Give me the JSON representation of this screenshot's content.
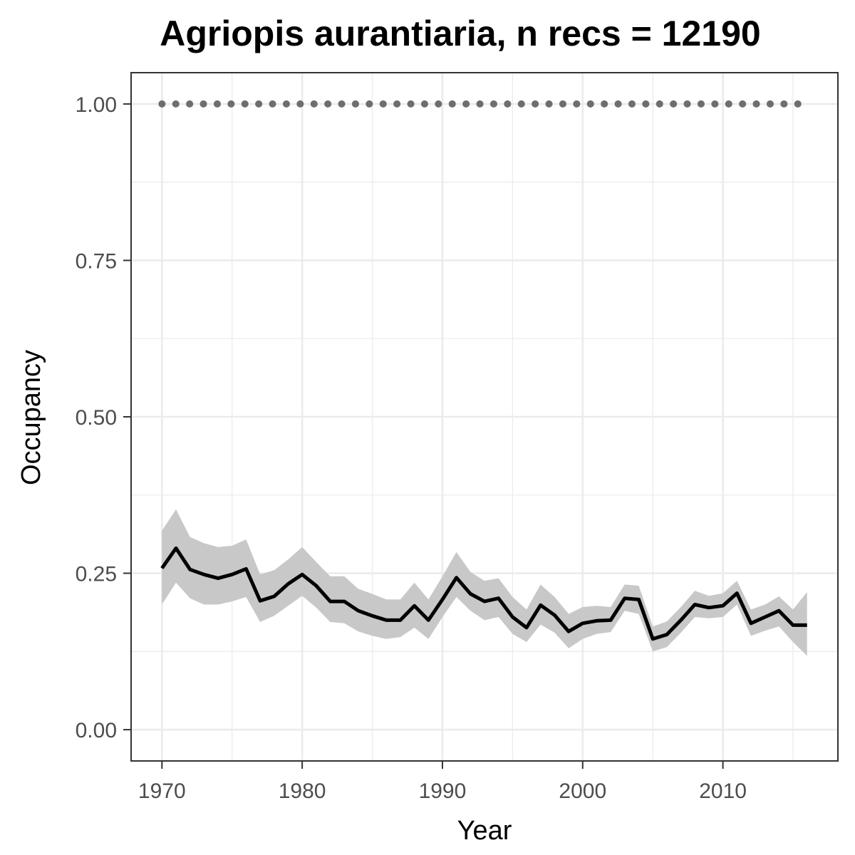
{
  "chart_data": {
    "type": "line",
    "title": "Agriopis aurantiaria, n recs = 12190",
    "xlabel": "Year",
    "ylabel": "Occupancy",
    "xlim": [
      1967.8,
      2018.2
    ],
    "ylim": [
      -0.05,
      1.05
    ],
    "x_ticks": [
      1970,
      1980,
      1990,
      2000,
      2010
    ],
    "x_tick_labels": [
      "1970",
      "1980",
      "1990",
      "2000",
      "2010"
    ],
    "y_ticks": [
      0,
      0.25,
      0.5,
      0.75,
      1.0
    ],
    "y_tick_labels": [
      "0.00",
      "0.25",
      "0.50",
      "0.75",
      "1.00"
    ],
    "grid": true,
    "series": [
      {
        "style": "solid line with confidence band",
        "color": "#000000",
        "band_color": "#c8c8c8",
        "x": [
          1970,
          1971,
          1972,
          1973,
          1974,
          1975,
          1976,
          1977,
          1978,
          1979,
          1980,
          1981,
          1982,
          1983,
          1984,
          1985,
          1986,
          1987,
          1988,
          1989,
          1990,
          1991,
          1992,
          1993,
          1994,
          1995,
          1996,
          1997,
          1998,
          1999,
          2000,
          2001,
          2002,
          2003,
          2004,
          2005,
          2006,
          2007,
          2008,
          2009,
          2010,
          2011,
          2012,
          2013,
          2014,
          2015,
          2016
        ],
        "y": [
          0.258,
          0.29,
          0.256,
          0.248,
          0.242,
          0.248,
          0.257,
          0.206,
          0.213,
          0.233,
          0.248,
          0.23,
          0.205,
          0.205,
          0.19,
          0.182,
          0.175,
          0.175,
          0.198,
          0.175,
          0.208,
          0.243,
          0.217,
          0.205,
          0.21,
          0.18,
          0.163,
          0.199,
          0.183,
          0.157,
          0.17,
          0.174,
          0.175,
          0.21,
          0.208,
          0.145,
          0.152,
          0.175,
          0.2,
          0.195,
          0.198,
          0.218,
          0.17,
          0.18,
          0.19,
          0.167,
          0.167
        ],
        "lower": [
          0.2,
          0.235,
          0.21,
          0.2,
          0.2,
          0.205,
          0.212,
          0.172,
          0.182,
          0.198,
          0.214,
          0.195,
          0.172,
          0.17,
          0.157,
          0.15,
          0.145,
          0.148,
          0.163,
          0.145,
          0.18,
          0.212,
          0.19,
          0.175,
          0.18,
          0.153,
          0.14,
          0.168,
          0.155,
          0.13,
          0.145,
          0.153,
          0.156,
          0.19,
          0.185,
          0.125,
          0.132,
          0.155,
          0.18,
          0.178,
          0.18,
          0.2,
          0.15,
          0.158,
          0.165,
          0.14,
          0.118
        ],
        "upper": [
          0.318,
          0.352,
          0.308,
          0.298,
          0.292,
          0.294,
          0.304,
          0.248,
          0.255,
          0.272,
          0.292,
          0.268,
          0.245,
          0.245,
          0.225,
          0.217,
          0.208,
          0.208,
          0.235,
          0.208,
          0.245,
          0.284,
          0.252,
          0.238,
          0.242,
          0.212,
          0.192,
          0.232,
          0.212,
          0.185,
          0.196,
          0.198,
          0.196,
          0.232,
          0.23,
          0.165,
          0.173,
          0.196,
          0.222,
          0.214,
          0.218,
          0.238,
          0.192,
          0.2,
          0.213,
          0.192,
          0.22
        ]
      },
      {
        "style": "dotted line",
        "color": "#6e6e6e",
        "x": [
          1970,
          2016
        ],
        "y": [
          1.0,
          1.0
        ]
      }
    ]
  }
}
